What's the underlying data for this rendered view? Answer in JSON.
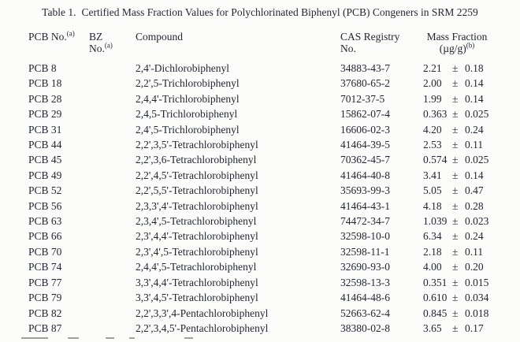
{
  "title": {
    "prefix": "Table 1.",
    "text": "Certified Mass Fraction Values for Polychlorinated Biphenyl (PCB) Congeners in SRM 2259"
  },
  "table": {
    "pm_symbol": "±",
    "headers": {
      "pcb_no": {
        "label": "PCB No.",
        "sup": "(a)"
      },
      "bz_no": {
        "line1": "BZ",
        "line2": "No.",
        "sup": "(a)"
      },
      "compound": {
        "label": "Compound"
      },
      "cas": {
        "line1": "CAS Registry",
        "line2": "No."
      },
      "mass_fraction": {
        "line1": "Mass Fraction",
        "line2": "(µg/g)",
        "sup": "(b)"
      }
    },
    "rows": [
      {
        "pcb_no": "PCB 8",
        "bz_no": "",
        "compound": "2,4'-Dichlorobiphenyl",
        "cas": "34883-43-7",
        "value": "2.21",
        "uncertainty": "0.18"
      },
      {
        "pcb_no": "PCB 18",
        "bz_no": "",
        "compound": "2,2',5-Trichlorobiphenyl",
        "cas": "37680-65-2",
        "value": "2.00",
        "uncertainty": "0.14"
      },
      {
        "pcb_no": "PCB 28",
        "bz_no": "",
        "compound": "2,4,4'-Trichlorobiphenyl",
        "cas": "7012-37-5",
        "value": "1.99",
        "uncertainty": "0.14"
      },
      {
        "pcb_no": "PCB 29",
        "bz_no": "",
        "compound": "2,4,5-Trichlorobiphenyl",
        "cas": "15862-07-4",
        "value": "0.363",
        "uncertainty": "0.025"
      },
      {
        "pcb_no": "PCB 31",
        "bz_no": "",
        "compound": "2,4',5-Trichlorobiphenyl",
        "cas": "16606-02-3",
        "value": "4.20",
        "uncertainty": "0.24"
      },
      {
        "pcb_no": "PCB 44",
        "bz_no": "",
        "compound": "2,2',3,5'-Tetrachlorobiphenyl",
        "cas": "41464-39-5",
        "value": "2.53",
        "uncertainty": "0.11"
      },
      {
        "pcb_no": "PCB 45",
        "bz_no": "",
        "compound": "2,2',3,6-Tetrachlorobiphenyl",
        "cas": "70362-45-7",
        "value": "0.574",
        "uncertainty": "0.025"
      },
      {
        "pcb_no": "PCB 49",
        "bz_no": "",
        "compound": "2,2',4,5'-Tetrachlorobiphenyl",
        "cas": "41464-40-8",
        "value": "3.41",
        "uncertainty": "0.14"
      },
      {
        "pcb_no": "PCB 52",
        "bz_no": "",
        "compound": "2,2',5,5'-Tetrachlorobiphenyl",
        "cas": "35693-99-3",
        "value": "5.05",
        "uncertainty": "0.47"
      },
      {
        "pcb_no": "PCB 56",
        "bz_no": "",
        "compound": "2,3,3',4'-Tetrachlorobiphenyl",
        "cas": "41464-43-1",
        "value": "4.18",
        "uncertainty": "0.28"
      },
      {
        "pcb_no": "PCB 63",
        "bz_no": "",
        "compound": "2,3,4',5-Tetrachlorobiphenyl",
        "cas": "74472-34-7",
        "value": "1.039",
        "uncertainty": "0.023"
      },
      {
        "pcb_no": "PCB 66",
        "bz_no": "",
        "compound": "2,3',4,4'-Tetrachlorobiphenyl",
        "cas": "32598-10-0",
        "value": "6.34",
        "uncertainty": "0.24"
      },
      {
        "pcb_no": "PCB 70",
        "bz_no": "",
        "compound": "2,3',4',5-Tetrachlorobiphenyl",
        "cas": "32598-11-1",
        "value": "2.18",
        "uncertainty": "0.11"
      },
      {
        "pcb_no": "PCB 74",
        "bz_no": "",
        "compound": "2,4,4',5-Tetrachlorobiphenyl",
        "cas": "32690-93-0",
        "value": "4.00",
        "uncertainty": "0.20"
      },
      {
        "pcb_no": "PCB 77",
        "bz_no": "",
        "compound": "3,3',4,4'-Tetrachlorobiphenyl",
        "cas": "32598-13-3",
        "value": "0.351",
        "uncertainty": "0.015"
      },
      {
        "pcb_no": "PCB 79",
        "bz_no": "",
        "compound": "3,3',4,5'-Tetrachlorobiphenyl",
        "cas": "41464-48-6",
        "value": "0.610",
        "uncertainty": "0.034"
      },
      {
        "pcb_no": "PCB 82",
        "bz_no": "",
        "compound": "2,2',3,3',4-Pentachlorobiphenyl",
        "cas": "52663-62-4",
        "value": "0.845",
        "uncertainty": "0.018"
      },
      {
        "pcb_no": "PCB 87",
        "bz_no": "",
        "compound": "2,2',3,4,5'-Pentachlorobiphenyl",
        "cas": "38380-02-8",
        "value": "3.65",
        "uncertainty": "0.17"
      }
    ]
  }
}
